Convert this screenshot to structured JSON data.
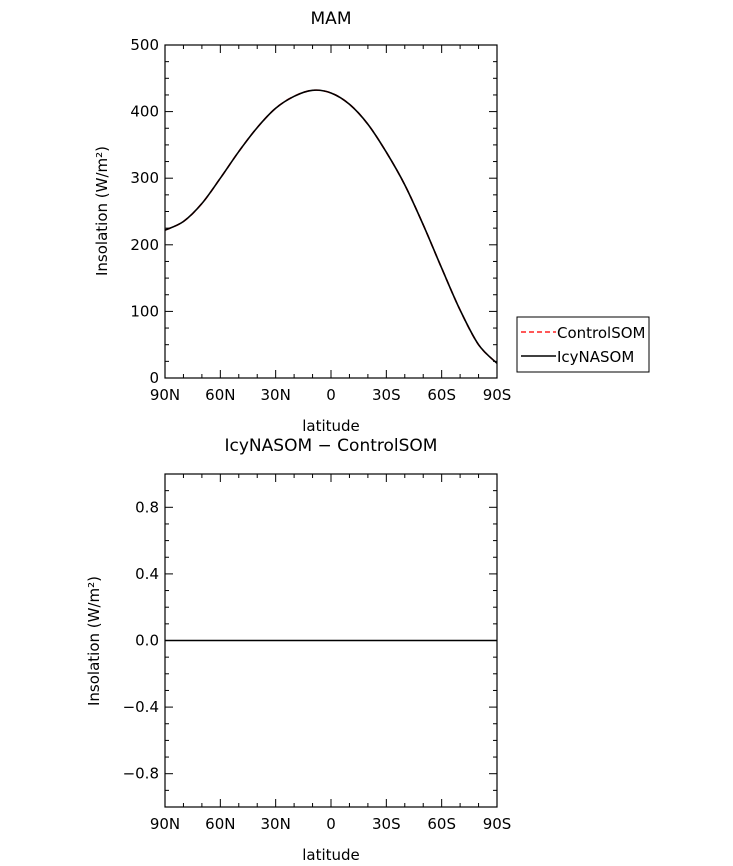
{
  "chart_data": [
    {
      "type": "line",
      "title": "MAM",
      "xlabel": "latitude",
      "ylabel": "Insolation (W/m²)",
      "xlim": [
        90,
        -90
      ],
      "ylim": [
        0,
        500
      ],
      "x_ticks": [
        {
          "value": 90,
          "label": "90N"
        },
        {
          "value": 60,
          "label": "60N"
        },
        {
          "value": 30,
          "label": "30N"
        },
        {
          "value": 0,
          "label": "0"
        },
        {
          "value": -30,
          "label": "30S"
        },
        {
          "value": -60,
          "label": "60S"
        },
        {
          "value": -90,
          "label": "90S"
        }
      ],
      "y_ticks": [
        {
          "value": 0,
          "label": "0"
        },
        {
          "value": 100,
          "label": "100"
        },
        {
          "value": 200,
          "label": "200"
        },
        {
          "value": 300,
          "label": "300"
        },
        {
          "value": 400,
          "label": "400"
        },
        {
          "value": 500,
          "label": "500"
        }
      ],
      "x": [
        90,
        80,
        70,
        60,
        50,
        40,
        30,
        20,
        10,
        0,
        -10,
        -20,
        -30,
        -40,
        -50,
        -60,
        -70,
        -80,
        -90
      ],
      "series": [
        {
          "name": "ControlSOM",
          "color": "#ff2020",
          "dash": "dashed",
          "values": [
            222,
            235,
            262,
            300,
            340,
            376,
            405,
            423,
            432,
            428,
            411,
            381,
            339,
            290,
            230,
            165,
            102,
            50,
            22
          ]
        },
        {
          "name": "IcyNASOM",
          "color": "#000000",
          "dash": "solid",
          "values": [
            222,
            235,
            262,
            300,
            340,
            376,
            405,
            423,
            432,
            428,
            411,
            381,
            339,
            290,
            230,
            165,
            102,
            50,
            22
          ]
        }
      ],
      "legend_position": "right"
    },
    {
      "type": "line",
      "title": "IcyNASOM − ControlSOM",
      "xlabel": "latitude",
      "ylabel": "Insolation (W/m²)",
      "xlim": [
        90,
        -90
      ],
      "ylim": [
        -1.0,
        1.0
      ],
      "x_ticks": [
        {
          "value": 90,
          "label": "90N"
        },
        {
          "value": 60,
          "label": "60N"
        },
        {
          "value": 30,
          "label": "30N"
        },
        {
          "value": 0,
          "label": "0"
        },
        {
          "value": -30,
          "label": "30S"
        },
        {
          "value": -60,
          "label": "60S"
        },
        {
          "value": -90,
          "label": "90S"
        }
      ],
      "y_ticks": [
        {
          "value": 0.8,
          "label": "0.8"
        },
        {
          "value": 0.4,
          "label": "0.4"
        },
        {
          "value": 0.0,
          "label": "0.0"
        },
        {
          "value": -0.4,
          "label": "−0.4"
        },
        {
          "value": -0.8,
          "label": "−0.8"
        }
      ],
      "x": [
        90,
        -90
      ],
      "series": [
        {
          "color": "#000000",
          "dash": "solid",
          "values": [
            0,
            0
          ]
        }
      ]
    }
  ]
}
